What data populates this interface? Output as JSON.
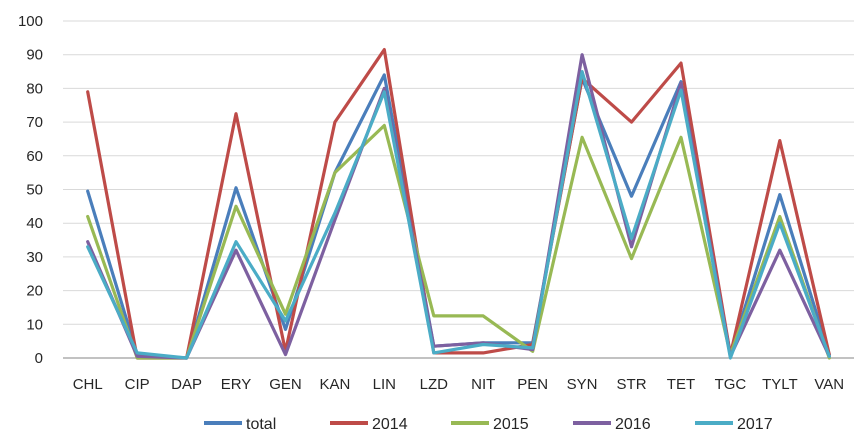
{
  "chart_data": {
    "type": "line",
    "title": "",
    "xlabel": "",
    "ylabel": "",
    "ylim": [
      0,
      100
    ],
    "yticks": [
      "0",
      "10",
      "20",
      "30",
      "40",
      "50",
      "60",
      "70",
      "80",
      "90",
      "100"
    ],
    "grid": true,
    "legend_position": "bottom",
    "categories": [
      "CHL",
      "CIP",
      "DAP",
      "ERY",
      "GEN",
      "KAN",
      "LIN",
      "LZD",
      "NIT",
      "PEN",
      "SYN",
      "STR",
      "TET",
      "TGC",
      "TYLT",
      "VAN"
    ],
    "series": [
      {
        "name": "total",
        "color": "#4a7ebb",
        "values": [
          49.5,
          1,
          0,
          50.5,
          8.5,
          55,
          84,
          3.5,
          4.5,
          4.5,
          83,
          48,
          82,
          1,
          48.5,
          1
        ]
      },
      {
        "name": "2014",
        "color": "#be4b48",
        "values": [
          79,
          0,
          0,
          72.5,
          2,
          70,
          91.5,
          1.5,
          1.5,
          4,
          83,
          70,
          87.5,
          1,
          64.5,
          1
        ]
      },
      {
        "name": "2015",
        "color": "#98b954",
        "values": [
          42,
          0,
          0,
          45,
          13,
          55,
          69,
          12.5,
          12.5,
          2,
          65.5,
          29.5,
          65.5,
          1,
          42,
          0
        ]
      },
      {
        "name": "2016",
        "color": "#7d60a0",
        "values": [
          34.5,
          0.5,
          0,
          32,
          1,
          41,
          80,
          3.5,
          4.5,
          2.5,
          90,
          33,
          81.5,
          0.5,
          32,
          0.5
        ]
      },
      {
        "name": "2017",
        "color": "#4bacc6",
        "values": [
          33,
          1.5,
          0,
          34.5,
          11,
          43,
          79,
          1.5,
          4,
          3,
          85,
          35.5,
          79.5,
          0,
          40,
          0.5
        ]
      }
    ]
  }
}
